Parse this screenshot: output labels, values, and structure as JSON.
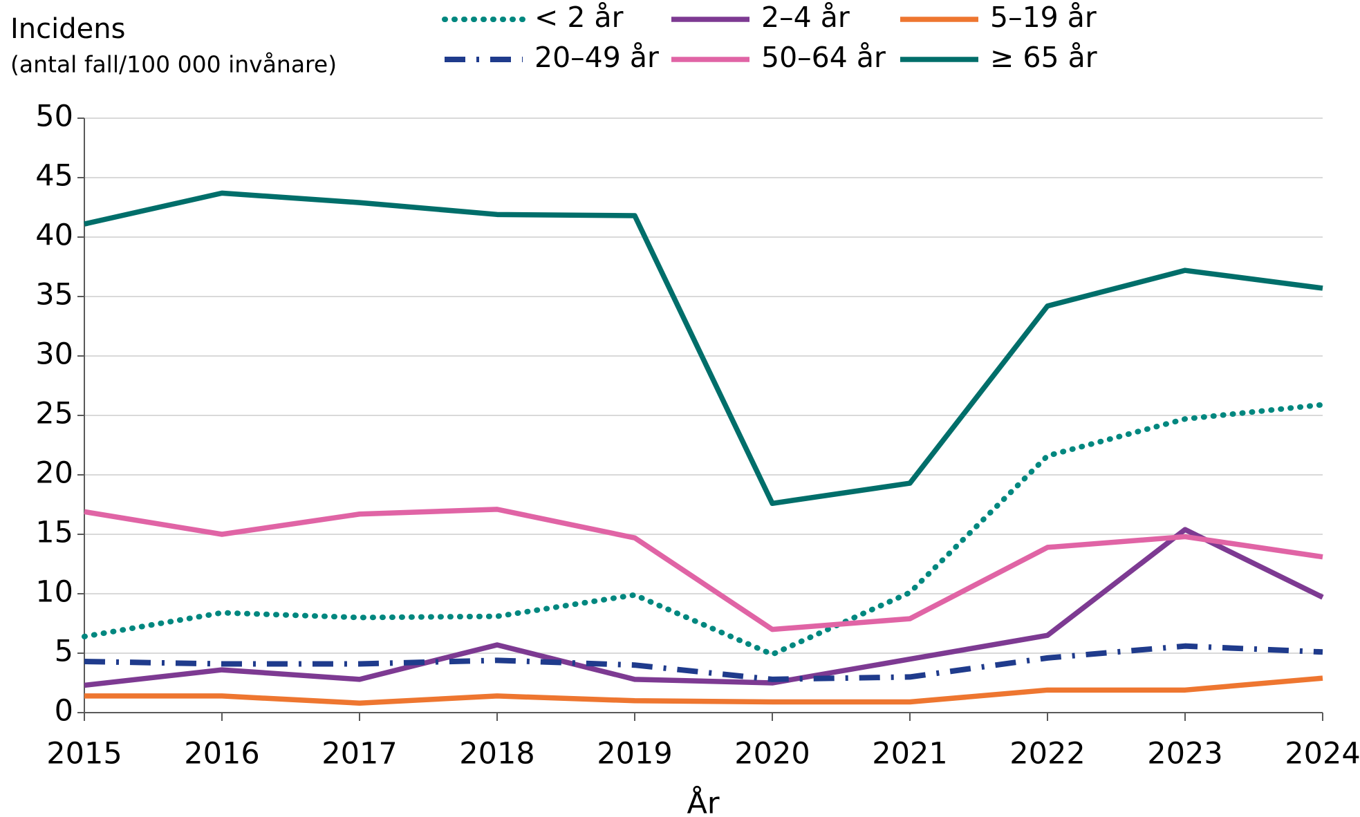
{
  "chart_data": {
    "type": "line",
    "title": "Incidens",
    "subtitle": "(antal fall/100 000 invånare)",
    "x_label": "År",
    "x": [
      2015,
      2016,
      2017,
      2018,
      2019,
      2020,
      2021,
      2022,
      2023,
      2024
    ],
    "xlim": [
      2015,
      2024
    ],
    "xticks": [
      2015,
      2016,
      2017,
      2018,
      2019,
      2020,
      2021,
      2022,
      2023,
      2024
    ],
    "ylim": [
      0,
      50
    ],
    "yticks": [
      0,
      5,
      10,
      15,
      20,
      25,
      30,
      35,
      40,
      45,
      50
    ],
    "grid": true,
    "legend": "top",
    "series": [
      {
        "name": "< 2 år",
        "color": "#00877f",
        "style": "dotted",
        "values": [
          6.4,
          8.4,
          8.0,
          8.1,
          9.9,
          4.9,
          10.1,
          21.6,
          24.7,
          25.9
        ]
      },
      {
        "name": "2–4 år",
        "color": "#7d3a92",
        "style": "solid",
        "values": [
          2.3,
          3.6,
          2.8,
          5.7,
          2.8,
          2.5,
          4.5,
          6.5,
          15.4,
          9.7
        ]
      },
      {
        "name": "5–19 år",
        "color": "#ee7630",
        "style": "solid",
        "values": [
          1.4,
          1.4,
          0.8,
          1.4,
          1.0,
          0.9,
          0.9,
          1.9,
          1.9,
          2.9
        ]
      },
      {
        "name": "20–49 år",
        "color": "#1f3b8c",
        "style": "dashdot",
        "values": [
          4.3,
          4.1,
          4.1,
          4.4,
          4.0,
          2.8,
          3.0,
          4.6,
          5.6,
          5.1
        ]
      },
      {
        "name": "50–64 år",
        "color": "#e064a5",
        "style": "solid",
        "values": [
          16.9,
          15.0,
          16.7,
          17.1,
          14.7,
          7.0,
          7.9,
          13.9,
          14.8,
          13.1
        ]
      },
      {
        "name": "≥ 65 år",
        "color": "#006e6a",
        "style": "solid",
        "values": [
          41.1,
          43.7,
          42.9,
          41.9,
          41.8,
          17.6,
          19.3,
          34.2,
          37.2,
          35.7
        ]
      }
    ]
  }
}
